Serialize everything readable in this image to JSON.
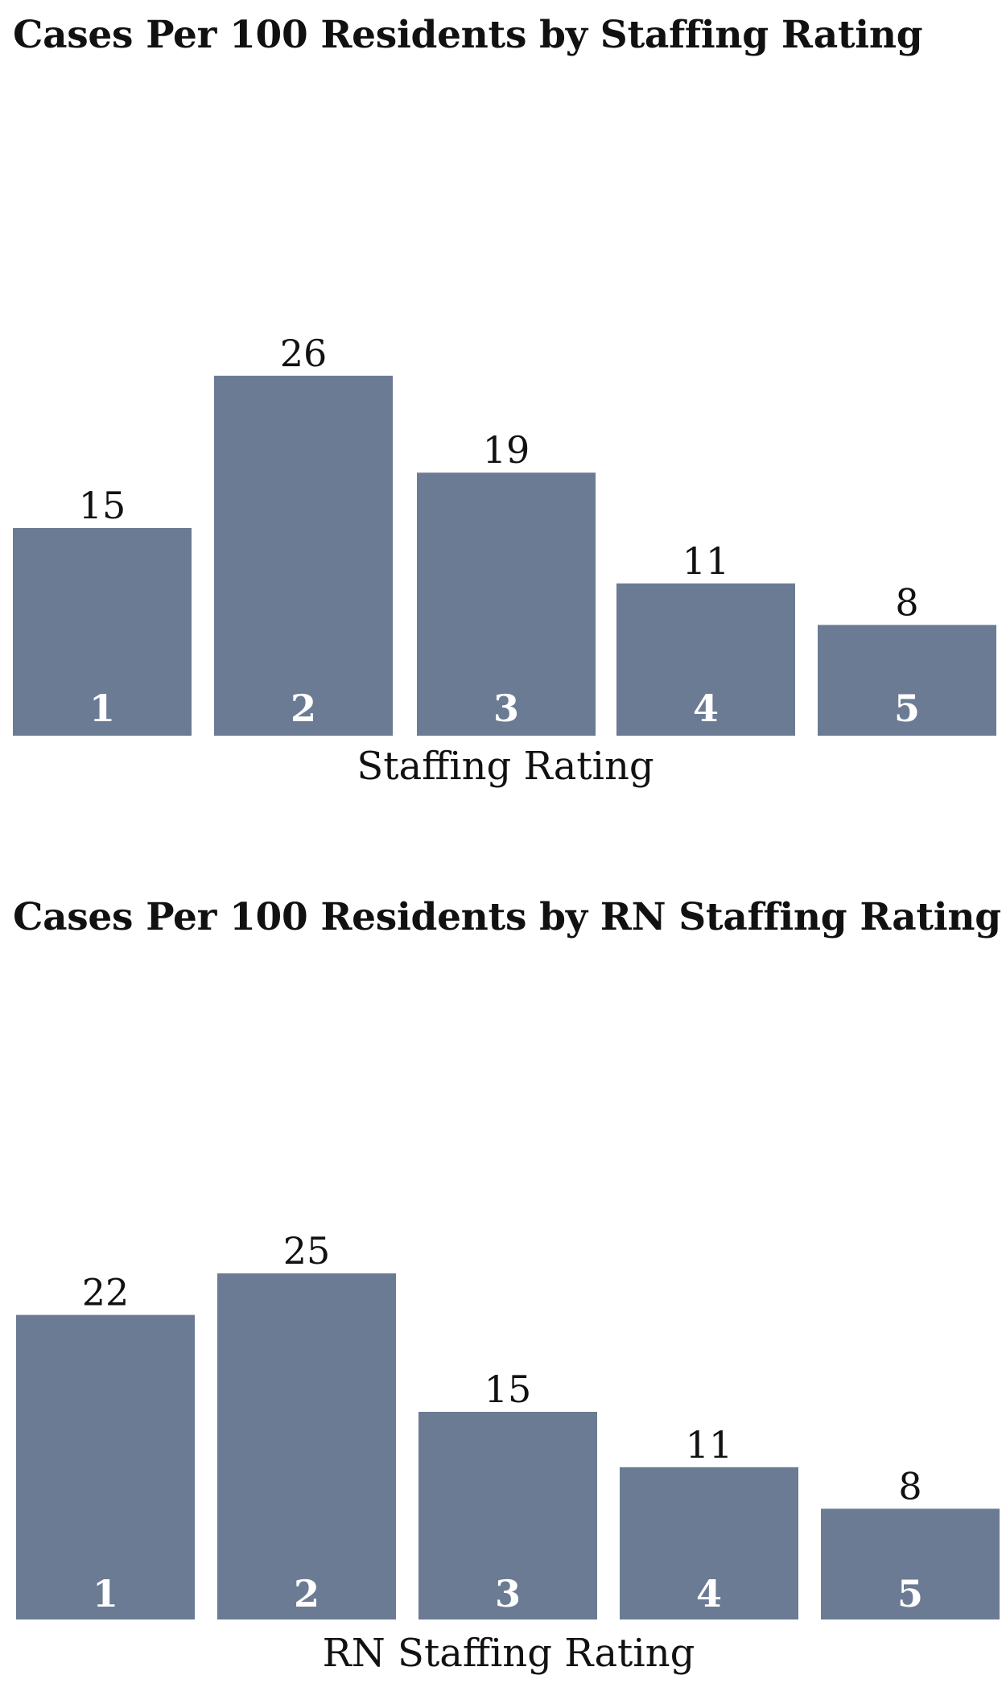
{
  "chart_data": [
    {
      "type": "bar",
      "title": "Cases Per 100 Residents by Staffing Rating",
      "xlabel": "Staffing Rating",
      "ylabel": "",
      "categories": [
        "1",
        "2",
        "3",
        "4",
        "5"
      ],
      "values": [
        15,
        26,
        19,
        11,
        8
      ],
      "bar_color": "#6b7b94",
      "grid": false,
      "legend": "none"
    },
    {
      "type": "bar",
      "title": "Cases Per 100 Residents by RN Staffing Rating",
      "xlabel": "RN Staffing Rating",
      "ylabel": "",
      "categories": [
        "1",
        "2",
        "3",
        "4",
        "5"
      ],
      "values": [
        22,
        25,
        15,
        11,
        8
      ],
      "bar_color": "#6b7b94",
      "grid": false,
      "legend": "none"
    }
  ]
}
